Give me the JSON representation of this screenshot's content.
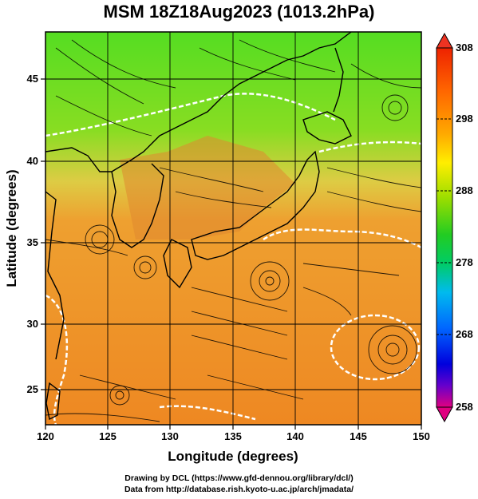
{
  "title": "MSM 18Z18Aug2023 (1013.2hPa)",
  "xlabel": "Longitude (degrees)",
  "ylabel": "Latitude  (degrees)",
  "x_ticks": [
    "120",
    "125",
    "130",
    "135",
    "140",
    "145",
    "150"
  ],
  "y_ticks": [
    "25",
    "30",
    "35",
    "40",
    "45"
  ],
  "colorbar": {
    "labels": [
      "308",
      "298",
      "288",
      "278",
      "268",
      "258"
    ],
    "range": [
      258,
      308
    ],
    "colors": [
      "#e00080",
      "#6600cc",
      "#0000dd",
      "#0066ff",
      "#00bbee",
      "#00cc66",
      "#22cc22",
      "#99dd00",
      "#ffee00",
      "#ffaa00",
      "#ff6600",
      "#ee2200"
    ]
  },
  "field_colors": {
    "north": "#66dd22",
    "mid": "#ccdd44",
    "south": "#ee9933",
    "land_contour": "#ffffff",
    "coast": "#000000"
  },
  "credits": {
    "line1": "Drawing by DCL (https://www.gfd-dennou.org/library/dcl/)",
    "line2": "Data from http://database.rish.kyoto-u.ac.jp/arch/jmadata/"
  }
}
